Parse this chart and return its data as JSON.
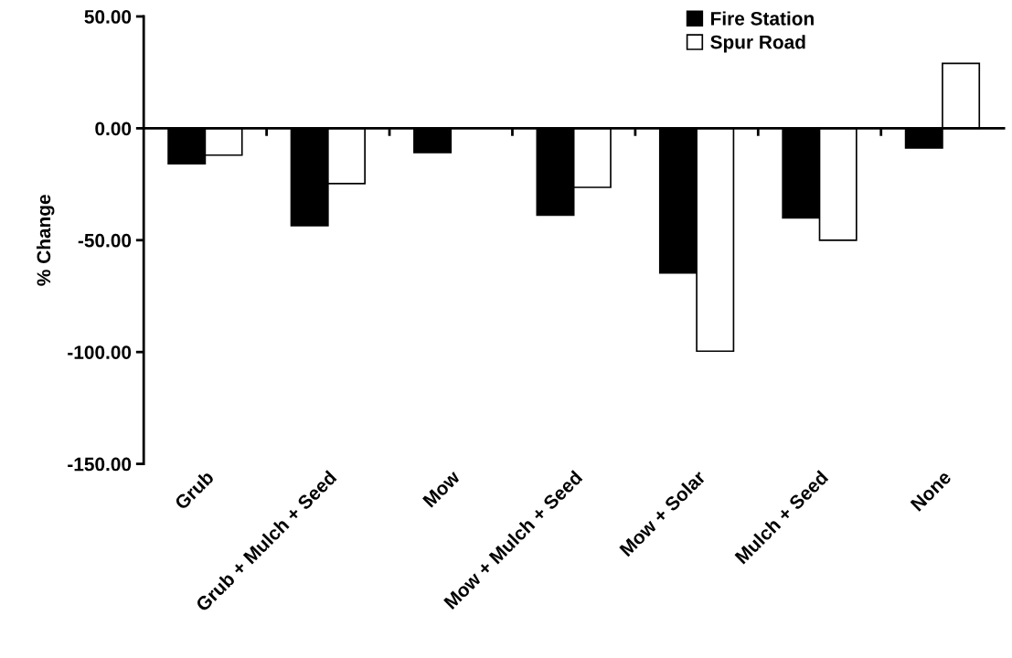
{
  "chart_data": {
    "type": "bar",
    "ylabel": "% Change",
    "categories": [
      "Grub",
      "Grub + Mulch + Seed",
      "Mow",
      "Mow + Mulch + Seed",
      "Mow + Solar",
      "Mulch + Seed",
      "None"
    ],
    "series": [
      {
        "name": "Fire Station",
        "color": "#000000",
        "values": [
          -15.8,
          -43.5,
          -10.8,
          -38.8,
          -64.7,
          -40.0,
          -8.8
        ]
      },
      {
        "name": "Spur Road",
        "color": "#ffffff",
        "values": [
          -12.0,
          -24.7,
          null,
          -26.4,
          -99.6,
          -50.0,
          29.0
        ]
      }
    ],
    "ylim": [
      -150,
      50
    ],
    "yticks": [
      {
        "value": 50,
        "label": "50.00"
      },
      {
        "value": 0,
        "label": "0.00"
      },
      {
        "value": -50,
        "label": "-50.00"
      },
      {
        "value": -100,
        "label": "-100.00"
      },
      {
        "value": -150,
        "label": "-150.00"
      }
    ],
    "legend": "top right"
  }
}
